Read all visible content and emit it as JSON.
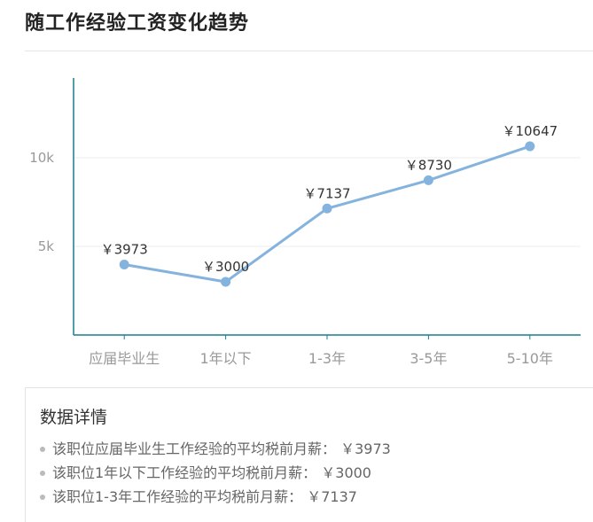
{
  "page": {
    "title": "随工作经验工资变化趋势"
  },
  "chart_data": {
    "type": "line",
    "categories": [
      "应届毕业生",
      "1年以下",
      "1-3年",
      "3-5年",
      "5-10年"
    ],
    "values": [
      3973,
      3000,
      7137,
      8730,
      10647
    ],
    "point_labels": [
      "￥3973",
      "￥3000",
      "￥7137",
      "￥8730",
      "￥10647"
    ],
    "y_ticks": [
      {
        "value": 5000,
        "label": "5k"
      },
      {
        "value": 10000,
        "label": "10k"
      }
    ],
    "ylim": [
      0,
      14500
    ],
    "grid": true,
    "colors": {
      "line": "#84b3dd",
      "point": "#84b3dd",
      "axis": "#1a7d8f",
      "grid": "#eeeeee"
    }
  },
  "details": {
    "title": "数据详情",
    "items": [
      "该职位应届毕业生工作经验的平均税前月薪： ￥3973",
      "该职位1年以下工作经验的平均税前月薪： ￥3000",
      "该职位1-3年工作经验的平均税前月薪： ￥7137"
    ]
  }
}
